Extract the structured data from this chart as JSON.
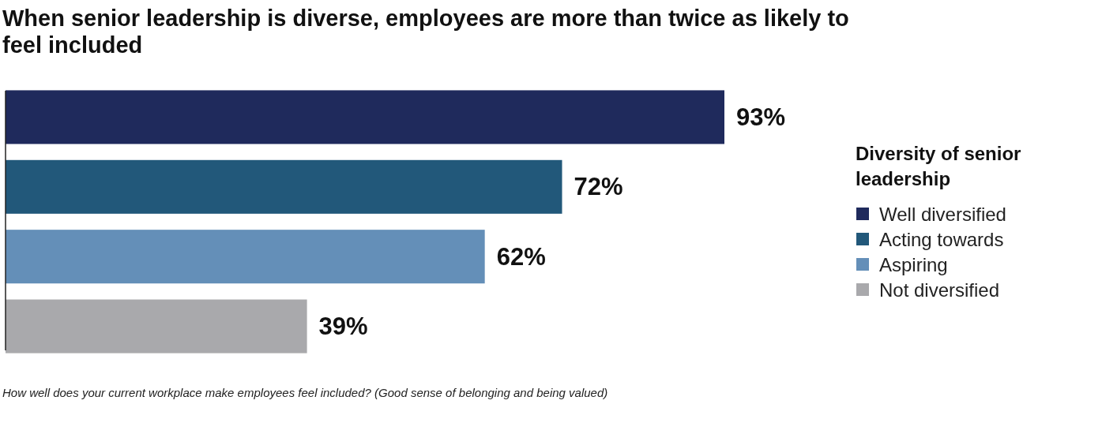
{
  "chart_data": {
    "type": "bar",
    "orientation": "horizontal",
    "stacked": true,
    "title": "When senior leadership is diverse, employees are more than twice as likely to feel included",
    "legend_title": "Diversity of senior leadership",
    "legend": "right",
    "categories": [
      null,
      null,
      null,
      null
    ],
    "series": [
      {
        "name": "Well diversified",
        "color": "#1f2a5c",
        "values": [
          93,
          null,
          null,
          null
        ],
        "value_labels": [
          "93%",
          null,
          null,
          null
        ]
      },
      {
        "name": "Acting towards",
        "color": "#22587a",
        "values": [
          null,
          72,
          null,
          null
        ],
        "value_labels": [
          null,
          "72%",
          null,
          null
        ]
      },
      {
        "name": "Aspiring",
        "color": "#648fb8",
        "values": [
          null,
          null,
          62,
          null
        ],
        "value_labels": [
          null,
          null,
          "62%",
          null
        ]
      },
      {
        "name": "Not diversified",
        "color": "#a9a9ac",
        "values": [
          null,
          null,
          null,
          39
        ],
        "value_labels": [
          null,
          null,
          null,
          "39%"
        ]
      }
    ],
    "annotations": [
      "How well does your current workplace make employees feel included? (Good sense of belonging and being valued)"
    ]
  }
}
